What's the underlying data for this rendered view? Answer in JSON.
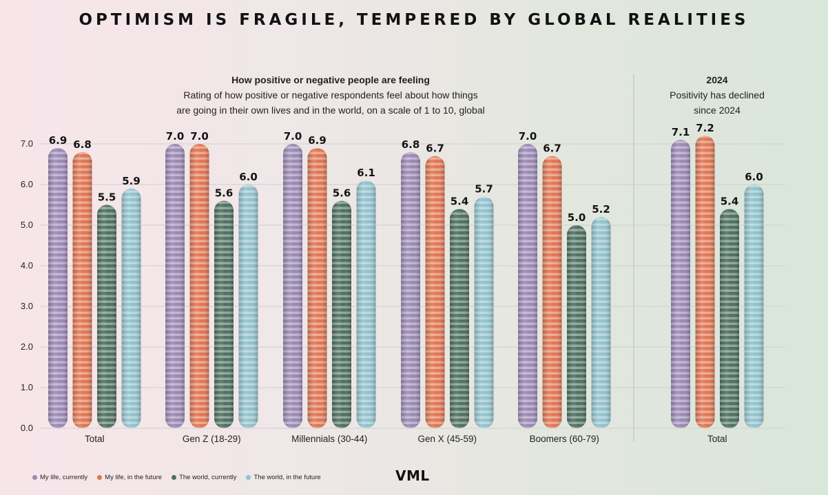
{
  "title": "OPTIMISM IS FRAGILE, TEMPERED BY GLOBAL REALITIES",
  "main_subtitle": {
    "bold": "How positive or negative people are feeling",
    "line1": "Rating of how positive or negative respondents feel about how things",
    "line2": "are going in their own lives and in the world, on a scale of 1 to 10, global"
  },
  "side_subtitle": {
    "bold": "2024",
    "line1": "Positivity has declined",
    "line2": "since 2024"
  },
  "logo": "VML",
  "colors": {
    "my_life_currently": "#9a87b4",
    "my_life_future": "#e2744f",
    "world_currently": "#4c6f5f",
    "world_future": "#8fc2cd",
    "gridline": "#cfcfcf",
    "divider": "#bdbdbd"
  },
  "chart_data": [
    {
      "type": "bar",
      "title": "How positive or negative people are feeling",
      "ylim": [
        0,
        7
      ],
      "yticks": [
        "0.0",
        "1.0",
        "2.0",
        "3.0",
        "4.0",
        "5.0",
        "6.0",
        "7.0"
      ],
      "categories": [
        "Total",
        "Gen Z (18-29)",
        "Millennials (30-44)",
        "Gen X (45-59)",
        "Boomers (60-79)"
      ],
      "series": [
        {
          "name": "My life, currently",
          "values": [
            6.9,
            7.0,
            7.0,
            6.8,
            7.0
          ]
        },
        {
          "name": "My life, in the future",
          "values": [
            6.8,
            7.0,
            6.9,
            6.7,
            6.7
          ]
        },
        {
          "name": "The world, currently",
          "values": [
            5.5,
            5.6,
            5.6,
            5.4,
            5.0
          ]
        },
        {
          "name": "The world, in the future",
          "values": [
            5.9,
            6.0,
            6.1,
            5.7,
            5.2
          ]
        }
      ],
      "legend": "bottom-left",
      "grid": true
    },
    {
      "type": "bar",
      "title": "2024",
      "ylim": [
        0,
        7
      ],
      "categories": [
        "Total"
      ],
      "series": [
        {
          "name": "My life, currently",
          "values": [
            7.1
          ]
        },
        {
          "name": "My life, in the future",
          "values": [
            7.2
          ]
        },
        {
          "name": "The world, currently",
          "values": [
            5.4
          ]
        },
        {
          "name": "The world, in the future",
          "values": [
            6.0
          ]
        }
      ],
      "grid": true
    }
  ]
}
